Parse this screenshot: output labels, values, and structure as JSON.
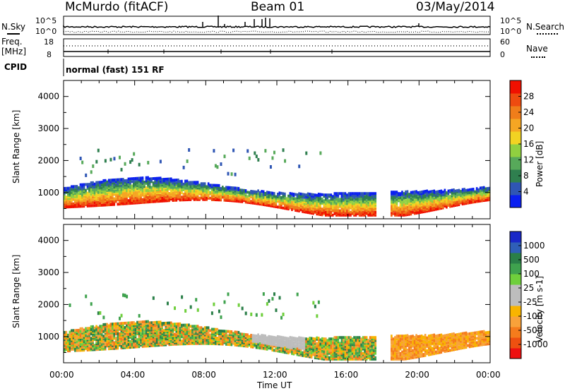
{
  "header": {
    "station": "McMurdo (fitACF)",
    "beam": "Beam 01",
    "date": "03/May/2014"
  },
  "sky_panel": {
    "left_label": "N.Sky",
    "right_label": "N.Search",
    "left_ticks": [
      "10^5",
      "10^0"
    ],
    "right_ticks": [
      "10^5",
      "10^0"
    ]
  },
  "freq_panel": {
    "left_label_1": "Freq.",
    "left_label_2": "[MHz]",
    "right_label": "Nave",
    "left_ticks": [
      "18",
      "8"
    ],
    "right_ticks": [
      "60",
      "0"
    ]
  },
  "cpid": {
    "label": "CPID",
    "value": "normal (fast) 151 RF"
  },
  "colors": {
    "scale_power": [
      "#0a1ff0",
      "#2f56b4",
      "#2f7f4f",
      "#57a95a",
      "#90d040",
      "#f2d322",
      "#f5a623",
      "#f07d1a",
      "#ee4b10",
      "#f01000"
    ],
    "scale_velocity": [
      "#ee1010",
      "#ee5010",
      "#f57c1c",
      "#f8a23a",
      "#f8b400",
      "#bdbdbd",
      "#bdbdbd",
      "#6fcf3c",
      "#3fa24e",
      "#2a7f48",
      "#2f5fb8",
      "#1a28c8"
    ]
  },
  "chart_data": [
    {
      "type": "heatmap",
      "title": "",
      "parameter": "Power",
      "ylabel": "Slant Range [km]",
      "xlabel": "Time UT",
      "x_ticks": [
        "00:00",
        "04:00",
        "08:00",
        "12:00",
        "16:00",
        "20:00",
        "00:00"
      ],
      "y_ticks": [
        1000,
        2000,
        3000,
        4000
      ],
      "ylim": [
        180,
        4500
      ],
      "xlim_hours": [
        0,
        24
      ],
      "colorbar": {
        "label": "Power [dB]",
        "range": [
          0,
          30
        ],
        "tick_labels": [
          "4",
          "8",
          "12",
          "16",
          "20",
          "24",
          "28"
        ]
      }
    },
    {
      "type": "heatmap",
      "title": "",
      "parameter": "Velocity",
      "ylabel": "Slant Range [km]",
      "xlabel": "Time UT",
      "x_ticks": [
        "00:00",
        "04:00",
        "08:00",
        "12:00",
        "16:00",
        "20:00",
        "00:00"
      ],
      "y_ticks": [
        1000,
        2000,
        3000,
        4000
      ],
      "ylim": [
        180,
        4500
      ],
      "xlim_hours": [
        0,
        24
      ],
      "colorbar": {
        "label": "Velocity [m s-1]",
        "range": [
          -1200,
          1200
        ],
        "tick_labels": [
          "1000",
          "500",
          "100",
          "25",
          "-25",
          "-100",
          "-500",
          "-1000"
        ]
      }
    }
  ]
}
